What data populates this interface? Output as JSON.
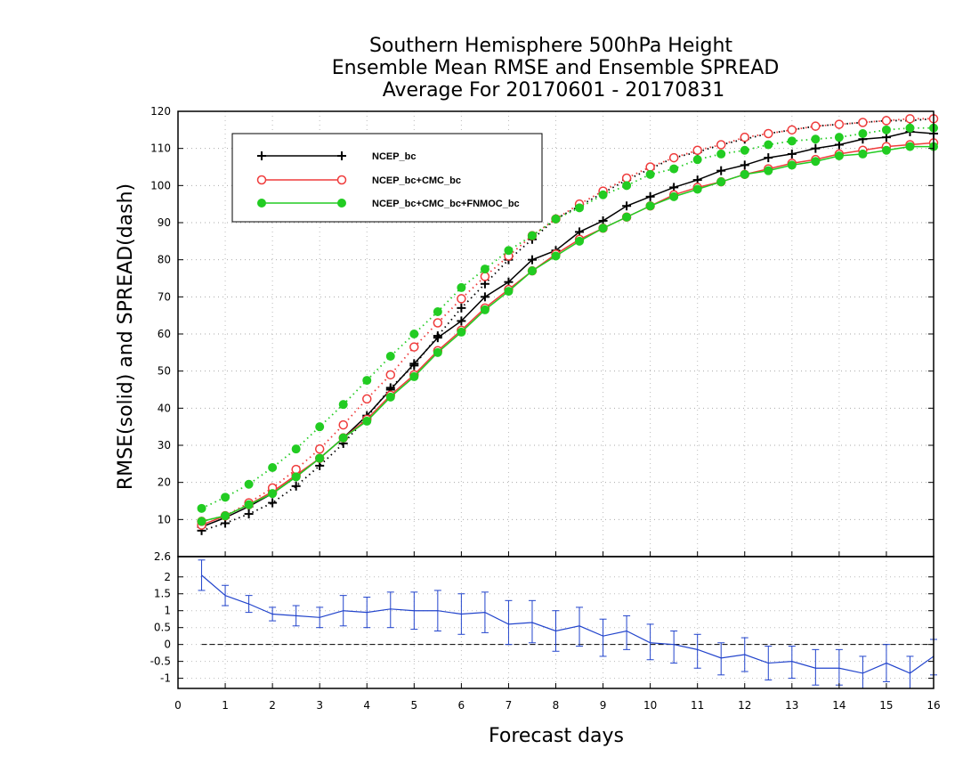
{
  "chart_data": [
    {
      "type": "line",
      "title_lines": [
        "Southern Hemisphere 500hPa Height",
        "Ensemble Mean RMSE and Ensemble SPREAD",
        "Average For 20170601 - 20170831"
      ],
      "ylabel": "RMSE(solid) and SPREAD(dash)",
      "xlabel": "Forecast days",
      "xlim": [
        0,
        16
      ],
      "ylim": [
        0,
        120
      ],
      "x_ticks": [
        "0",
        "1",
        "2",
        "3",
        "4",
        "5",
        "6",
        "7",
        "8",
        "9",
        "10",
        "11",
        "12",
        "13",
        "14",
        "15",
        "16"
      ],
      "y_ticks": [
        "10",
        "20",
        "30",
        "40",
        "50",
        "60",
        "70",
        "80",
        "90",
        "100",
        "110",
        "120"
      ],
      "grid": true,
      "legend_position": "top-left",
      "x": [
        0.5,
        1,
        1.5,
        2,
        2.5,
        3,
        3.5,
        4,
        4.5,
        5,
        5.5,
        6,
        6.5,
        7,
        7.5,
        8,
        8.5,
        9,
        9.5,
        10,
        10.5,
        11,
        11.5,
        12,
        12.5,
        13,
        13.5,
        14,
        14.5,
        15,
        15.5,
        16
      ],
      "series": [
        {
          "name": "NCEP_bc",
          "color": "#000000",
          "marker": "plus",
          "rmse": [
            8,
            10.5,
            13.5,
            17,
            21.5,
            26.5,
            32,
            38,
            45,
            52,
            59,
            63.5,
            70,
            74,
            80,
            82.5,
            87.5,
            90.5,
            94.5,
            97,
            99.5,
            101.5,
            104,
            105.5,
            107.5,
            108.5,
            110,
            111,
            112.5,
            113,
            114.5,
            114
          ],
          "spread": [
            7,
            9,
            11.5,
            14.5,
            19,
            24.5,
            30.5,
            37.5,
            45.5,
            51.5,
            59.5,
            67,
            73.5,
            80,
            85.5,
            91,
            94.5,
            98,
            101.5,
            104.5,
            107.5,
            109,
            111,
            112.5,
            114,
            115,
            116,
            116.5,
            117,
            117.5,
            117.5,
            118
          ]
        },
        {
          "name": "NCEP_bc+CMC_bc",
          "color": "#ef3b3b",
          "marker": "open-circle",
          "rmse": [
            8.5,
            11,
            14,
            17.5,
            22,
            26.5,
            32,
            37,
            43.5,
            49,
            55.5,
            61,
            67,
            72,
            77,
            81.5,
            85.5,
            88.5,
            91.5,
            94.5,
            97.5,
            99.5,
            101,
            103,
            104.5,
            106,
            107,
            108.5,
            109.5,
            110.5,
            111,
            111.5
          ],
          "spread": [
            9.5,
            11,
            14.5,
            18.5,
            23.5,
            29,
            35.5,
            42.5,
            49,
            56.5,
            63,
            69.5,
            75.5,
            81,
            86.5,
            91,
            95,
            98.5,
            102,
            105,
            107.5,
            109.5,
            111,
            113,
            114,
            115,
            116,
            116.5,
            117,
            117.5,
            118,
            118
          ]
        },
        {
          "name": "NCEP_bc+CMC_bc+FNMOC_bc",
          "color": "#22cc22",
          "marker": "filled-circle",
          "rmse": [
            9.5,
            11,
            14,
            17,
            21.5,
            26.5,
            32,
            36.5,
            43,
            48.5,
            55,
            60.5,
            66.5,
            71.5,
            77,
            81,
            85,
            88.5,
            91.5,
            94.5,
            97,
            99,
            101,
            103,
            104,
            105.5,
            106.5,
            108,
            108.5,
            109.5,
            110.5,
            110.5
          ],
          "spread": [
            13,
            16,
            19.5,
            24,
            29,
            35,
            41,
            47.5,
            54,
            60,
            66,
            72.5,
            77.5,
            82.5,
            86.5,
            91,
            94,
            97.5,
            100,
            103,
            104.5,
            107,
            108.5,
            109.5,
            111,
            112,
            112.5,
            113,
            114,
            115,
            115.5,
            115.5
          ]
        }
      ]
    },
    {
      "type": "line",
      "series_color": "#2244cc",
      "xlim": [
        0,
        16
      ],
      "ylim": [
        -1.3,
        2.6
      ],
      "y_ticks": [
        "2.6",
        "2",
        "1.5",
        "1",
        "0.5",
        "0",
        "-0.5",
        "-1"
      ],
      "zero_line": true,
      "x": [
        0.5,
        1,
        1.5,
        2,
        2.5,
        3,
        3.5,
        4,
        4.5,
        5,
        5.5,
        6,
        6.5,
        7,
        7.5,
        8,
        8.5,
        9,
        9.5,
        10,
        10.5,
        11,
        11.5,
        12,
        12.5,
        13,
        13.5,
        14,
        14.5,
        15,
        15.5,
        16
      ],
      "values": [
        2.05,
        1.45,
        1.2,
        0.9,
        0.85,
        0.8,
        1.0,
        0.95,
        1.05,
        1.0,
        1.0,
        0.9,
        0.95,
        0.6,
        0.65,
        0.4,
        0.55,
        0.25,
        0.4,
        0.05,
        0.0,
        -0.15,
        -0.4,
        -0.3,
        -0.55,
        -0.5,
        -0.7,
        -0.7,
        -0.85,
        -0.55,
        -0.85,
        -0.35
      ],
      "error_low": [
        1.6,
        1.15,
        0.95,
        0.7,
        0.55,
        0.5,
        0.55,
        0.5,
        0.5,
        0.45,
        0.4,
        0.3,
        0.35,
        0.0,
        0.05,
        -0.2,
        -0.05,
        -0.35,
        -0.15,
        -0.45,
        -0.55,
        -0.7,
        -0.9,
        -0.8,
        -1.05,
        -1.0,
        -1.2,
        -1.2,
        -1.3,
        -1.1,
        -1.3,
        -0.9
      ],
      "error_high": [
        2.5,
        1.75,
        1.45,
        1.1,
        1.15,
        1.1,
        1.45,
        1.4,
        1.55,
        1.55,
        1.6,
        1.5,
        1.55,
        1.3,
        1.3,
        1.0,
        1.1,
        0.75,
        0.85,
        0.6,
        0.4,
        0.3,
        0.05,
        0.2,
        -0.05,
        -0.05,
        -0.15,
        -0.15,
        -0.35,
        0.0,
        -0.35,
        0.15
      ]
    }
  ]
}
